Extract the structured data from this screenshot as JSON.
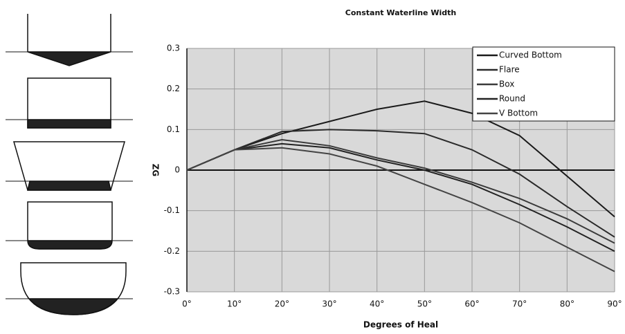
{
  "chart_data": {
    "type": "line",
    "title": "Constant Waterline Width",
    "x_label": "Degrees of Heal",
    "y_label": "ZG",
    "x": [
      0,
      10,
      20,
      30,
      40,
      50,
      60,
      70,
      80,
      90
    ],
    "xlim": [
      0,
      90
    ],
    "xticks": [
      {
        "value": 0,
        "label": "0°"
      },
      {
        "value": 10,
        "label": "10°"
      },
      {
        "value": 20,
        "label": "20°"
      },
      {
        "value": 30,
        "label": "30°"
      },
      {
        "value": 40,
        "label": "40°"
      },
      {
        "value": 50,
        "label": "50°"
      },
      {
        "value": 60,
        "label": "60°"
      },
      {
        "value": 70,
        "label": "70°"
      },
      {
        "value": 80,
        "label": "80°"
      },
      {
        "value": 90,
        "label": "90°"
      }
    ],
    "ylim": [
      -0.3,
      0.3
    ],
    "yticks": [
      -0.3,
      -0.2,
      -0.1,
      0,
      0.1,
      0.2,
      0.3
    ],
    "grid": true,
    "legend": "top-right",
    "series": [
      {
        "name": "Curved Bottom",
        "color": "#1a1a1a",
        "values": [
          0,
          0.05,
          0.09,
          0.12,
          0.15,
          0.17,
          0.14,
          0.085,
          -0.015,
          -0.115
        ]
      },
      {
        "name": "Flare",
        "color": "#2a2a2a",
        "values": [
          0,
          0.05,
          0.095,
          0.1,
          0.097,
          0.09,
          0.05,
          -0.01,
          -0.09,
          -0.165
        ]
      },
      {
        "name": "Box",
        "color": "#3a3a3a",
        "values": [
          0,
          0.05,
          0.075,
          0.06,
          0.03,
          0.005,
          -0.03,
          -0.07,
          -0.12,
          -0.18
        ]
      },
      {
        "name": "Round",
        "color": "#222222",
        "values": [
          0,
          0.05,
          0.065,
          0.055,
          0.025,
          0,
          -0.035,
          -0.085,
          -0.14,
          -0.2
        ]
      },
      {
        "name": "V Bottom",
        "color": "#444444",
        "values": [
          0,
          0.05,
          0.055,
          0.04,
          0.01,
          -0.035,
          -0.08,
          -0.13,
          -0.19,
          -0.25
        ]
      }
    ]
  }
}
